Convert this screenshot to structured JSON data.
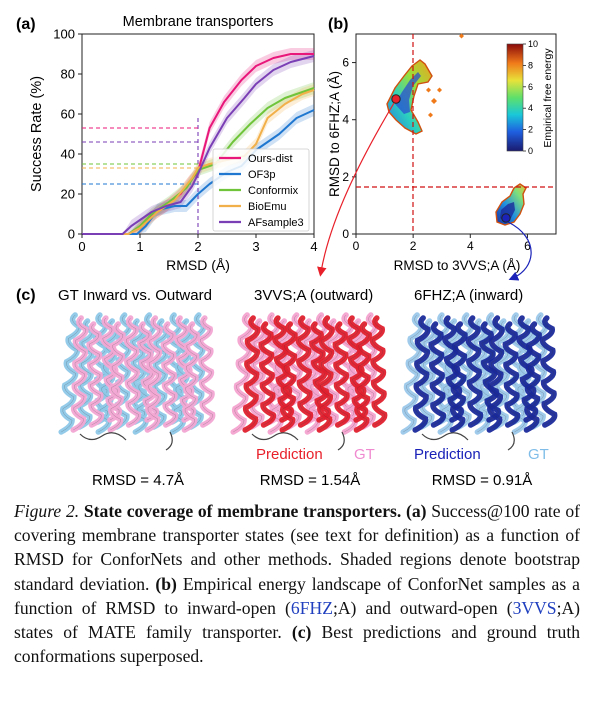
{
  "panel_a": {
    "label": "(a)",
    "title": "Membrane transporters",
    "xlabel": "RMSD (Å)",
    "ylabel": "Success Rate (%)",
    "legend": [
      "Ours-dist",
      "OF3p",
      "Conformix",
      "BioEmu",
      "AFsample3"
    ]
  },
  "panel_b": {
    "label": "(b)",
    "xlabel": "RMSD to 3VVS;A (Å)",
    "ylabel": "RMSD to 6FHZ;A (Å)",
    "colorbar_label": "Empirical free energy",
    "colorbar_ticks": [
      "0",
      "2",
      "4",
      "6",
      "8",
      "10"
    ]
  },
  "panel_c": {
    "label": "(c)",
    "columns": [
      {
        "title": "GT Inward vs. Outward",
        "rmsd": "RMSD = 4.7Å"
      },
      {
        "title": "3VVS;A (outward)",
        "pred_label": "Prediction",
        "gt_label": "GT",
        "rmsd": "RMSD = 1.54Å"
      },
      {
        "title": "6FHZ;A (inward)",
        "pred_label": "Prediction",
        "gt_label": "GT",
        "rmsd": "RMSD = 0.91Å"
      }
    ]
  },
  "caption": {
    "label": "Figure 2.",
    "bold_title": "State coverage of membrane transporters.",
    "p_a": "(a)",
    "text_a": "Success@100 rate of covering membrane transporter states (see text for definition) as a function of RMSD for ConforNets and other methods. Shaded regions denote bootstrap standard deviation.",
    "p_b": "(b)",
    "text_b1": "Empirical energy landscape of ConforNet samples as a function of RMSD to inward-open (",
    "link1": "6FHZ",
    "text_b2": ";A) and outward-open (",
    "link2": "3VVS",
    "text_b3": ";A) states of MATE family transporter.",
    "p_c": "(c)",
    "text_c": "Best predictions and ground truth conformations superposed."
  },
  "colors": {
    "ours": "#e8177a",
    "of3p": "#1f77d0",
    "conformix": "#6fc43a",
    "bioemu": "#f2b04a",
    "afsample3": "#7a3fb5",
    "prediction_red": "#e8202a",
    "gt_pink": "#f5a3d6",
    "prediction_blue": "#1a22b8",
    "gt_lightblue": "#7fbde8"
  },
  "chart_data": [
    {
      "type": "line",
      "title": "Membrane transporters",
      "xlabel": "RMSD (Å)",
      "ylabel": "Success Rate (%)",
      "xlim": [
        0,
        4
      ],
      "ylim": [
        0,
        100
      ],
      "xticks": [
        0,
        1,
        2,
        3,
        4
      ],
      "yticks": [
        0,
        20,
        40,
        60,
        80,
        100
      ],
      "legend_position": "lower-right",
      "series": [
        {
          "name": "Ours-dist",
          "x": [
            0,
            0.8,
            1.0,
            1.2,
            1.45,
            1.7,
            1.85,
            2.0,
            2.2,
            2.45,
            2.75,
            3.0,
            3.3,
            3.6,
            4.0
          ],
          "y": [
            0,
            0,
            3,
            9,
            14,
            20,
            26,
            31,
            53,
            66,
            77,
            84,
            88,
            90,
            90
          ]
        },
        {
          "name": "OF3p",
          "x": [
            0,
            0.95,
            1.1,
            1.3,
            1.6,
            1.8,
            2.0,
            2.2,
            2.5,
            2.75,
            3.0,
            3.4,
            3.7,
            4.0
          ],
          "y": [
            0,
            0,
            4,
            12,
            14,
            14,
            20,
            25,
            31,
            34,
            42,
            50,
            58,
            62
          ]
        },
        {
          "name": "Conformix",
          "x": [
            0,
            0.8,
            1.0,
            1.2,
            1.5,
            1.8,
            2.0,
            2.3,
            2.6,
            2.9,
            3.2,
            3.5,
            3.8,
            4.0
          ],
          "y": [
            0,
            0,
            4,
            10,
            16,
            23,
            32,
            35,
            46,
            55,
            63,
            68,
            71,
            73
          ]
        },
        {
          "name": "BioEmu",
          "x": [
            0,
            0.8,
            1.0,
            1.3,
            1.6,
            1.9,
            2.0,
            2.2,
            2.5,
            2.8,
            3.0,
            3.2,
            3.5,
            3.8,
            4.0
          ],
          "y": [
            0,
            0,
            3,
            11,
            17,
            28,
            33,
            35,
            37,
            39,
            45,
            58,
            65,
            70,
            72
          ]
        },
        {
          "name": "AFsample3",
          "x": [
            0,
            0.7,
            0.85,
            1.0,
            1.2,
            1.45,
            1.7,
            1.9,
            2.0,
            2.2,
            2.5,
            2.8,
            3.0,
            3.3,
            3.6,
            4.0
          ],
          "y": [
            0,
            0,
            4,
            7,
            11,
            14,
            16,
            24,
            30,
            43,
            58,
            68,
            75,
            82,
            86,
            89
          ]
        }
      ],
      "reference_lines": [
        {
          "axis": "x",
          "value": 2
        },
        {
          "axis": "y",
          "value": 53
        },
        {
          "axis": "y",
          "value": 46
        },
        {
          "axis": "y",
          "value": 35
        },
        {
          "axis": "y",
          "value": 33
        },
        {
          "axis": "y",
          "value": 25
        }
      ]
    },
    {
      "type": "heatmap",
      "xlabel": "RMSD to 3VVS;A (Å)",
      "ylabel": "RMSD to 6FHZ;A (Å)",
      "xlim": [
        0,
        7
      ],
      "ylim": [
        0,
        7
      ],
      "xticks": [
        0,
        2,
        4,
        6
      ],
      "yticks": [
        0,
        2,
        4,
        6
      ],
      "colorbar": {
        "label": "Empirical free energy",
        "range": [
          0,
          10
        ],
        "ticks": [
          0,
          2,
          4,
          6,
          8,
          10
        ]
      },
      "reference_lines": [
        {
          "axis": "x",
          "value": 2
        },
        {
          "axis": "y",
          "value": 2
        }
      ],
      "markers": [
        {
          "x": 1.4,
          "y": 5.5
        },
        {
          "x": 5.75,
          "y": 0.85
        }
      ]
    }
  ]
}
